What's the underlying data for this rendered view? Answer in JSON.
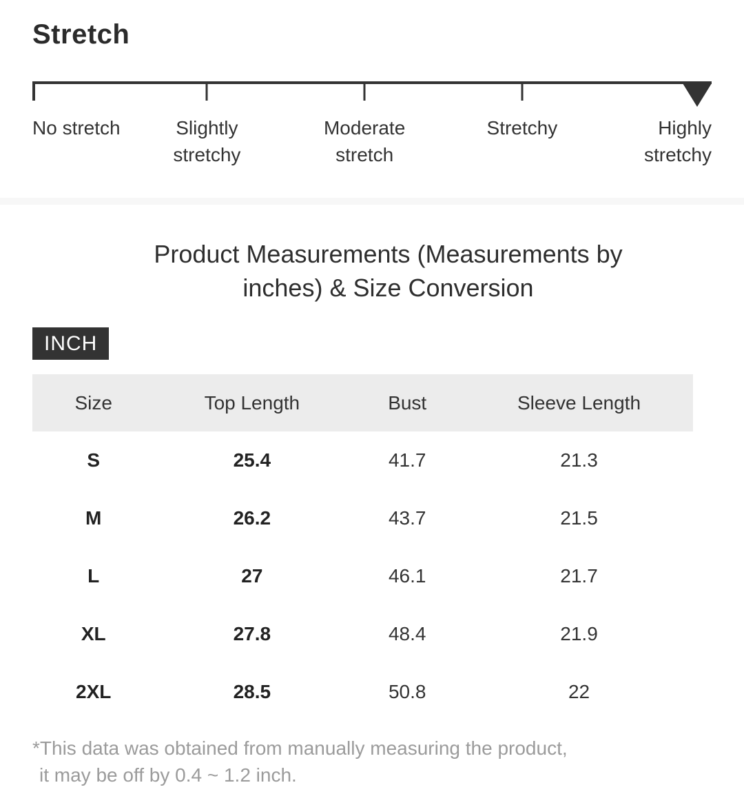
{
  "stretch": {
    "heading": "Stretch",
    "levels": [
      "No stretch",
      "Slightly stretchy",
      "Moderate stretch",
      "Stretchy",
      "Highly stretchy"
    ],
    "selected_level": "Highly stretchy",
    "selected_index": 4
  },
  "measurements": {
    "title": "Product Measurements (Measurements by inches) & Size Conversion",
    "unit": "INCH",
    "table": {
      "columns": [
        "Size",
        "Top Length",
        "Bust",
        "Sleeve Length"
      ],
      "rows": [
        {
          "size": "S",
          "top_length": "25.4",
          "bust": "41.7",
          "sleeve_length": "21.3"
        },
        {
          "size": "M",
          "top_length": "26.2",
          "bust": "43.7",
          "sleeve_length": "21.5"
        },
        {
          "size": "L",
          "top_length": "27",
          "bust": "46.1",
          "sleeve_length": "21.7"
        },
        {
          "size": "XL",
          "top_length": "27.8",
          "bust": "48.4",
          "sleeve_length": "21.9"
        },
        {
          "size": "2XL",
          "top_length": "28.5",
          "bust": "50.8",
          "sleeve_length": "22"
        }
      ]
    },
    "footnote": [
      "*This data was obtained from manually measuring the product,",
      "it may be off by 0.4 ~ 1.2 inch."
    ]
  },
  "colors": {
    "text_dark": "#333333",
    "badge_bg": "#333333",
    "badge_text": "#ffffff",
    "table_header_bg": "#ececec",
    "divider_bg": "#f7f7f7",
    "footnote_gray": "#9b9b9b",
    "indicator": "#333333"
  }
}
